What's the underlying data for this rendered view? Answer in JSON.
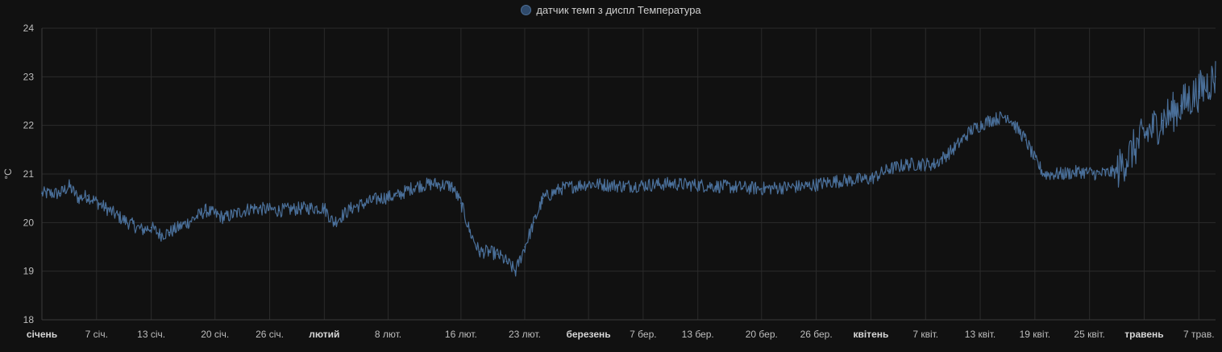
{
  "chart_data": {
    "type": "line",
    "legend": {
      "label": "датчик темп з диспл Температура",
      "position": "top-center"
    },
    "ylabel": "°C",
    "ylim": [
      18,
      24
    ],
    "yticks": [
      18,
      19,
      20,
      21,
      22,
      23,
      24
    ],
    "grid": true,
    "xlim": [
      "2024-01-01",
      "2024-05-08T20:00"
    ],
    "xticks": [
      {
        "date": "2024-01-01",
        "label": "січень",
        "bold": true
      },
      {
        "date": "2024-01-07",
        "label": "7 січ.",
        "bold": false
      },
      {
        "date": "2024-01-13",
        "label": "13 січ.",
        "bold": false
      },
      {
        "date": "2024-01-20",
        "label": "20 січ.",
        "bold": false
      },
      {
        "date": "2024-01-26",
        "label": "26 січ.",
        "bold": false
      },
      {
        "date": "2024-02-01",
        "label": "лютий",
        "bold": true
      },
      {
        "date": "2024-02-08",
        "label": "8 лют.",
        "bold": false
      },
      {
        "date": "2024-02-16",
        "label": "16 лют.",
        "bold": false
      },
      {
        "date": "2024-02-23",
        "label": "23 лют.",
        "bold": false
      },
      {
        "date": "2024-03-01",
        "label": "березень",
        "bold": true
      },
      {
        "date": "2024-03-07",
        "label": "7 бер.",
        "bold": false
      },
      {
        "date": "2024-03-13",
        "label": "13 бер.",
        "bold": false
      },
      {
        "date": "2024-03-20",
        "label": "20 бер.",
        "bold": false
      },
      {
        "date": "2024-03-26",
        "label": "26 бер.",
        "bold": false
      },
      {
        "date": "2024-04-01",
        "label": "квітень",
        "bold": true
      },
      {
        "date": "2024-04-07",
        "label": "7 квіт.",
        "bold": false
      },
      {
        "date": "2024-04-13",
        "label": "13 квіт.",
        "bold": false
      },
      {
        "date": "2024-04-19",
        "label": "19 квіт.",
        "bold": false
      },
      {
        "date": "2024-04-25",
        "label": "25 квіт.",
        "bold": false
      },
      {
        "date": "2024-05-01",
        "label": "травень",
        "bold": true
      },
      {
        "date": "2024-05-07",
        "label": "7 трав.",
        "bold": false
      }
    ],
    "colors": {
      "line": "#4a6f99",
      "line_dense": "#4f7fb3",
      "grid": "#2b2b2b",
      "background": "#111111"
    },
    "series": [
      {
        "name": "датчик темп з диспл Температура",
        "points": [
          [
            "2024-01-01",
            20.6
          ],
          [
            "2024-01-03",
            20.6
          ],
          [
            "2024-01-04",
            20.75
          ],
          [
            "2024-01-05",
            20.5
          ],
          [
            "2024-01-06",
            20.55
          ],
          [
            "2024-01-08",
            20.3
          ],
          [
            "2024-01-10",
            20.05
          ],
          [
            "2024-01-12",
            19.85
          ],
          [
            "2024-01-13",
            19.9
          ],
          [
            "2024-01-14",
            19.75
          ],
          [
            "2024-01-15",
            19.8
          ],
          [
            "2024-01-17",
            20.0
          ],
          [
            "2024-01-19",
            20.25
          ],
          [
            "2024-01-21",
            20.1
          ],
          [
            "2024-01-24",
            20.3
          ],
          [
            "2024-01-27",
            20.25
          ],
          [
            "2024-01-30",
            20.3
          ],
          [
            "2024-02-01",
            20.3
          ],
          [
            "2024-02-02",
            20.0
          ],
          [
            "2024-02-04",
            20.3
          ],
          [
            "2024-02-07",
            20.5
          ],
          [
            "2024-02-09",
            20.55
          ],
          [
            "2024-02-11",
            20.75
          ],
          [
            "2024-02-13",
            20.8
          ],
          [
            "2024-02-15",
            20.75
          ],
          [
            "2024-02-16",
            20.4
          ],
          [
            "2024-02-17",
            19.8
          ],
          [
            "2024-02-18",
            19.4
          ],
          [
            "2024-02-19",
            19.4
          ],
          [
            "2024-02-20",
            19.35
          ],
          [
            "2024-02-21",
            19.2
          ],
          [
            "2024-02-22",
            19.0
          ],
          [
            "2024-02-23",
            19.5
          ],
          [
            "2024-02-24",
            20.0
          ],
          [
            "2024-02-25",
            20.5
          ],
          [
            "2024-02-27",
            20.7
          ],
          [
            "2024-03-01",
            20.8
          ],
          [
            "2024-03-05",
            20.75
          ],
          [
            "2024-03-10",
            20.8
          ],
          [
            "2024-03-15",
            20.75
          ],
          [
            "2024-03-20",
            20.7
          ],
          [
            "2024-03-25",
            20.75
          ],
          [
            "2024-03-28",
            20.85
          ],
          [
            "2024-04-01",
            20.9
          ],
          [
            "2024-04-03",
            21.1
          ],
          [
            "2024-04-05",
            21.2
          ],
          [
            "2024-04-08",
            21.2
          ],
          [
            "2024-04-10",
            21.5
          ],
          [
            "2024-04-12",
            21.9
          ],
          [
            "2024-04-14",
            22.1
          ],
          [
            "2024-04-16",
            22.2
          ],
          [
            "2024-04-18",
            21.7
          ],
          [
            "2024-04-19",
            21.3
          ],
          [
            "2024-04-20",
            21.0
          ],
          [
            "2024-04-22",
            21.0
          ],
          [
            "2024-04-24",
            21.05
          ],
          [
            "2024-04-26",
            21.0
          ],
          [
            "2024-04-28",
            21.05
          ],
          [
            "2024-04-29",
            21.3
          ],
          [
            "2024-05-01",
            21.8
          ],
          [
            "2024-05-03",
            22.1
          ],
          [
            "2024-05-05",
            22.4
          ],
          [
            "2024-05-07",
            22.7
          ],
          [
            "2024-05-08T20:00",
            23.0
          ]
        ]
      }
    ]
  }
}
